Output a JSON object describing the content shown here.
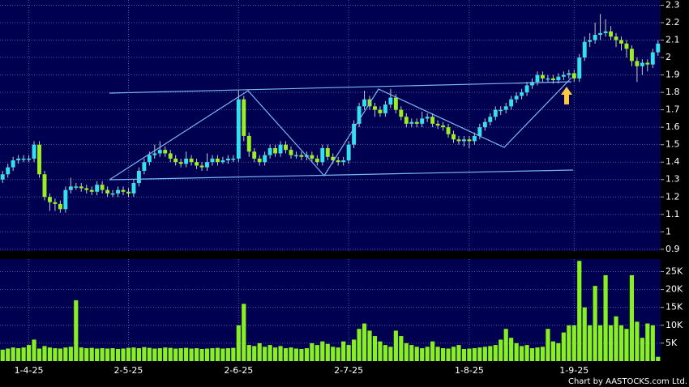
{
  "chart_data": [
    {
      "type": "candlestick",
      "categories": [
        null,
        null,
        null,
        null,
        null,
        "1-4-25",
        null,
        null,
        null,
        null,
        null,
        null,
        null,
        null,
        null,
        null,
        null,
        null,
        null,
        null,
        null,
        null,
        null,
        null,
        "2-5-25",
        null,
        null,
        null,
        null,
        null,
        null,
        null,
        null,
        null,
        null,
        null,
        null,
        null,
        null,
        null,
        null,
        null,
        null,
        null,
        null,
        "2-6-25",
        null,
        null,
        null,
        null,
        null,
        null,
        null,
        null,
        null,
        null,
        null,
        null,
        null,
        null,
        null,
        null,
        null,
        null,
        null,
        null,
        "2-7-25",
        null,
        null,
        null,
        null,
        null,
        null,
        null,
        null,
        null,
        null,
        null,
        null,
        null,
        null,
        null,
        null,
        null,
        null,
        null,
        null,
        null,
        null,
        "1-8-25",
        null,
        null,
        null,
        null,
        null,
        null,
        null,
        null,
        null,
        null,
        null,
        null,
        null,
        null,
        null,
        null,
        null,
        null,
        null,
        "1-9-25",
        null,
        null,
        null,
        null,
        null,
        null,
        null,
        null,
        null,
        null,
        null,
        null,
        null,
        null,
        null,
        null
      ],
      "open": [
        1.3,
        1.33,
        1.37,
        1.41,
        1.42,
        1.42,
        1.42,
        1.5,
        1.33,
        1.2,
        1.17,
        1.16,
        1.13,
        1.24,
        1.26,
        1.26,
        1.25,
        1.24,
        1.23,
        1.27,
        1.24,
        1.22,
        1.22,
        1.24,
        1.23,
        1.22,
        1.28,
        1.35,
        1.4,
        1.44,
        1.45,
        1.47,
        1.45,
        1.42,
        1.4,
        1.39,
        1.42,
        1.4,
        1.38,
        1.37,
        1.4,
        1.42,
        1.4,
        1.41,
        1.42,
        1.42,
        1.76,
        1.55,
        1.46,
        1.42,
        1.4,
        1.44,
        1.48,
        1.45,
        1.5,
        1.47,
        1.44,
        1.44,
        1.43,
        1.44,
        1.42,
        1.4,
        1.48,
        1.43,
        1.41,
        1.4,
        1.41,
        1.5,
        1.62,
        1.72,
        1.76,
        1.72,
        1.7,
        1.68,
        1.73,
        1.77,
        1.7,
        1.66,
        1.62,
        1.63,
        1.62,
        1.65,
        1.66,
        1.62,
        1.61,
        1.6,
        1.56,
        1.53,
        1.52,
        1.53,
        1.52,
        1.55,
        1.6,
        1.63,
        1.66,
        1.7,
        1.7,
        1.72,
        1.76,
        1.78,
        1.8,
        1.84,
        1.86,
        1.9,
        1.88,
        1.88,
        1.87,
        1.89,
        1.9,
        1.91,
        1.88,
        2.0,
        2.09,
        2.1,
        2.13,
        2.14,
        2.15,
        2.12,
        2.1,
        2.08,
        2.05,
        1.98,
        1.95,
        1.97,
        1.96,
        2.03
      ],
      "high": [
        1.35,
        1.39,
        1.43,
        1.44,
        1.44,
        1.44,
        1.52,
        1.52,
        1.35,
        1.22,
        1.19,
        1.18,
        1.26,
        1.31,
        1.28,
        1.28,
        1.27,
        1.26,
        1.29,
        1.29,
        1.26,
        1.24,
        1.26,
        1.26,
        1.25,
        1.3,
        1.37,
        1.42,
        1.46,
        1.5,
        1.52,
        1.49,
        1.47,
        1.44,
        1.42,
        1.46,
        1.44,
        1.42,
        1.4,
        1.45,
        1.44,
        1.44,
        1.43,
        1.44,
        1.44,
        1.81,
        1.78,
        1.57,
        1.48,
        1.44,
        1.46,
        1.5,
        1.5,
        1.52,
        1.52,
        1.49,
        1.46,
        1.46,
        1.46,
        1.46,
        1.44,
        1.5,
        1.5,
        1.45,
        1.43,
        1.43,
        1.52,
        1.64,
        1.74,
        1.81,
        1.78,
        1.74,
        1.72,
        1.75,
        1.82,
        1.79,
        1.72,
        1.68,
        1.65,
        1.65,
        1.69,
        1.68,
        1.68,
        1.64,
        1.63,
        1.62,
        1.58,
        1.55,
        1.55,
        1.55,
        1.57,
        1.62,
        1.65,
        1.68,
        1.72,
        1.72,
        1.74,
        1.78,
        1.8,
        1.82,
        1.86,
        1.88,
        1.92,
        1.92,
        1.9,
        1.9,
        1.91,
        1.92,
        1.93,
        1.93,
        2.02,
        2.12,
        2.14,
        2.2,
        2.25,
        2.22,
        2.18,
        2.14,
        2.12,
        2.1,
        2.07,
        2.0,
        1.99,
        1.99,
        2.05,
        2.1
      ],
      "low": [
        1.28,
        1.31,
        1.35,
        1.39,
        1.4,
        1.4,
        1.4,
        1.31,
        1.18,
        1.12,
        1.12,
        1.11,
        1.11,
        1.22,
        1.24,
        1.23,
        1.22,
        1.21,
        1.21,
        1.22,
        1.2,
        1.2,
        1.2,
        1.21,
        1.2,
        1.2,
        1.26,
        1.33,
        1.38,
        1.42,
        1.43,
        1.43,
        1.4,
        1.38,
        1.37,
        1.37,
        1.38,
        1.36,
        1.35,
        1.35,
        1.38,
        1.38,
        1.39,
        1.39,
        1.4,
        1.4,
        1.52,
        1.43,
        1.4,
        1.38,
        1.38,
        1.42,
        1.43,
        1.43,
        1.45,
        1.42,
        1.42,
        1.41,
        1.41,
        1.4,
        1.38,
        1.38,
        1.41,
        1.39,
        1.38,
        1.38,
        1.39,
        1.48,
        1.6,
        1.7,
        1.7,
        1.66,
        1.66,
        1.66,
        1.71,
        1.68,
        1.64,
        1.6,
        1.6,
        1.6,
        1.6,
        1.63,
        1.6,
        1.59,
        1.58,
        1.54,
        1.51,
        1.5,
        1.49,
        1.48,
        1.5,
        1.53,
        1.58,
        1.61,
        1.64,
        1.67,
        1.68,
        1.7,
        1.74,
        1.76,
        1.78,
        1.82,
        1.84,
        1.86,
        1.86,
        1.85,
        1.85,
        1.87,
        1.88,
        1.86,
        1.86,
        1.98,
        2.06,
        2.08,
        2.1,
        2.12,
        2.1,
        2.06,
        2.04,
        2.0,
        1.95,
        1.86,
        1.9,
        1.92,
        1.94,
        2.01
      ],
      "close": [
        1.33,
        1.37,
        1.41,
        1.42,
        1.42,
        1.42,
        1.5,
        1.33,
        1.2,
        1.17,
        1.16,
        1.13,
        1.24,
        1.26,
        1.26,
        1.25,
        1.24,
        1.23,
        1.27,
        1.24,
        1.22,
        1.22,
        1.24,
        1.23,
        1.22,
        1.28,
        1.35,
        1.4,
        1.44,
        1.45,
        1.47,
        1.45,
        1.42,
        1.4,
        1.39,
        1.42,
        1.4,
        1.38,
        1.37,
        1.4,
        1.42,
        1.4,
        1.41,
        1.42,
        1.42,
        1.76,
        1.55,
        1.46,
        1.42,
        1.4,
        1.44,
        1.48,
        1.45,
        1.5,
        1.47,
        1.44,
        1.44,
        1.43,
        1.44,
        1.42,
        1.4,
        1.48,
        1.43,
        1.41,
        1.4,
        1.41,
        1.5,
        1.62,
        1.72,
        1.76,
        1.72,
        1.7,
        1.68,
        1.73,
        1.77,
        1.7,
        1.66,
        1.62,
        1.63,
        1.62,
        1.65,
        1.66,
        1.62,
        1.61,
        1.6,
        1.56,
        1.53,
        1.52,
        1.53,
        1.52,
        1.55,
        1.6,
        1.63,
        1.66,
        1.7,
        1.7,
        1.72,
        1.76,
        1.78,
        1.8,
        1.84,
        1.86,
        1.9,
        1.88,
        1.88,
        1.87,
        1.89,
        1.9,
        1.91,
        1.88,
        2.0,
        2.09,
        2.1,
        2.13,
        2.14,
        2.15,
        2.12,
        2.1,
        2.08,
        2.05,
        1.98,
        1.95,
        1.97,
        1.96,
        2.03,
        2.08
      ],
      "up_color": "#33e0f0",
      "down_color": "#9aee22",
      "ylim": [
        0.89,
        2.33
      ],
      "yticks": [
        0.9,
        1,
        1.1,
        1.2,
        1.3,
        1.4,
        1.5,
        1.6,
        1.7,
        1.8,
        1.9,
        2,
        2.1,
        2.2,
        2.3
      ],
      "grid": true
    },
    {
      "type": "bar",
      "values": [
        3200,
        3500,
        3800,
        3600,
        3800,
        4500,
        6000,
        3500,
        4200,
        3800,
        3600,
        3500,
        3800,
        4000,
        17000,
        3800,
        3600,
        3700,
        3500,
        3600,
        3500,
        3600,
        3400,
        3500,
        3700,
        3800,
        3600,
        3900,
        3700,
        3500,
        3600,
        3800,
        3700,
        3500,
        3600,
        3700,
        3500,
        3600,
        3400,
        3500,
        3600,
        3700,
        3500,
        3600,
        3700,
        10000,
        16000,
        4500,
        4200,
        5000,
        4000,
        4500,
        3800,
        4200,
        3600,
        3800,
        3500,
        3400,
        3600,
        5000,
        4500,
        5500,
        4800,
        4000,
        3800,
        5500,
        4500,
        6000,
        9000,
        10500,
        8500,
        7000,
        5500,
        4500,
        4000,
        8500,
        7000,
        5000,
        4500,
        4000,
        3600,
        4000,
        5500,
        4000,
        3600,
        3500,
        4000,
        4500,
        3400,
        3500,
        3600,
        3800,
        4000,
        4200,
        4500,
        6000,
        9000,
        6500,
        5000,
        4200,
        4500,
        3600,
        3800,
        4000,
        9000,
        5500,
        5000,
        8000,
        10000,
        10000,
        28000,
        15000,
        10000,
        21000,
        10000,
        24000,
        10000,
        12500,
        10000,
        9000,
        24000,
        11000,
        6500,
        10500,
        10000,
        1200
      ],
      "color": "#88f020",
      "ylim": [
        0,
        28500
      ],
      "yticks": [
        {
          "value": 5000,
          "label": "5K"
        },
        {
          "value": 10000,
          "label": "10K"
        },
        {
          "value": 15000,
          "label": "15K"
        },
        {
          "value": 20000,
          "label": "20K"
        },
        {
          "value": 25000,
          "label": "25K"
        }
      ],
      "grid": true
    }
  ],
  "credit": "Chart by AASTOCKS.com Ltd."
}
